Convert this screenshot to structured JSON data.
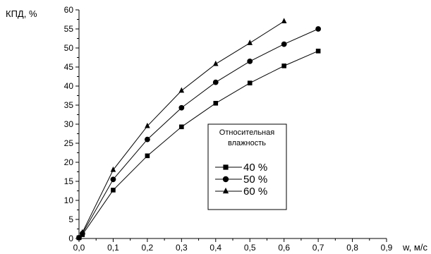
{
  "chart_data": {
    "type": "line",
    "title": "",
    "ylabel": "КПД, %",
    "xlabel": "w, м/с",
    "xlim": [
      0,
      0.9
    ],
    "ylim": [
      0,
      60
    ],
    "x_ticks": [
      "0,0",
      "0,1",
      "0,2",
      "0,3",
      "0,4",
      "0,5",
      "0,6",
      "0,7",
      "0,8",
      "0,9"
    ],
    "y_ticks": [
      "0",
      "5",
      "10",
      "15",
      "20",
      "25",
      "30",
      "35",
      "40",
      "45",
      "50",
      "55",
      "60"
    ],
    "grid": false,
    "legend": {
      "title_lines": [
        "Относительная",
        "влажность"
      ],
      "placement": "center-right"
    },
    "series": [
      {
        "name": "40 %",
        "marker": "square",
        "points": [
          [
            0.0,
            0.2
          ],
          [
            0.01,
            1.0
          ],
          [
            0.1,
            12.7
          ],
          [
            0.2,
            21.7
          ],
          [
            0.3,
            29.3
          ],
          [
            0.4,
            35.5
          ],
          [
            0.5,
            40.8
          ],
          [
            0.6,
            45.3
          ],
          [
            0.7,
            49.2
          ]
        ]
      },
      {
        "name": "50 %",
        "marker": "circle",
        "points": [
          [
            0.0,
            0.2
          ],
          [
            0.01,
            1.3
          ],
          [
            0.1,
            15.5
          ],
          [
            0.2,
            26.0
          ],
          [
            0.3,
            34.3
          ],
          [
            0.4,
            41.0
          ],
          [
            0.5,
            46.5
          ],
          [
            0.6,
            51.0
          ],
          [
            0.7,
            55.0
          ]
        ]
      },
      {
        "name": "60 %",
        "marker": "triangle",
        "points": [
          [
            0.0,
            0.2
          ],
          [
            0.01,
            1.6
          ],
          [
            0.1,
            18.0
          ],
          [
            0.2,
            29.5
          ],
          [
            0.3,
            38.8
          ],
          [
            0.4,
            45.8
          ],
          [
            0.5,
            51.3
          ],
          [
            0.6,
            57.0
          ]
        ]
      }
    ]
  }
}
